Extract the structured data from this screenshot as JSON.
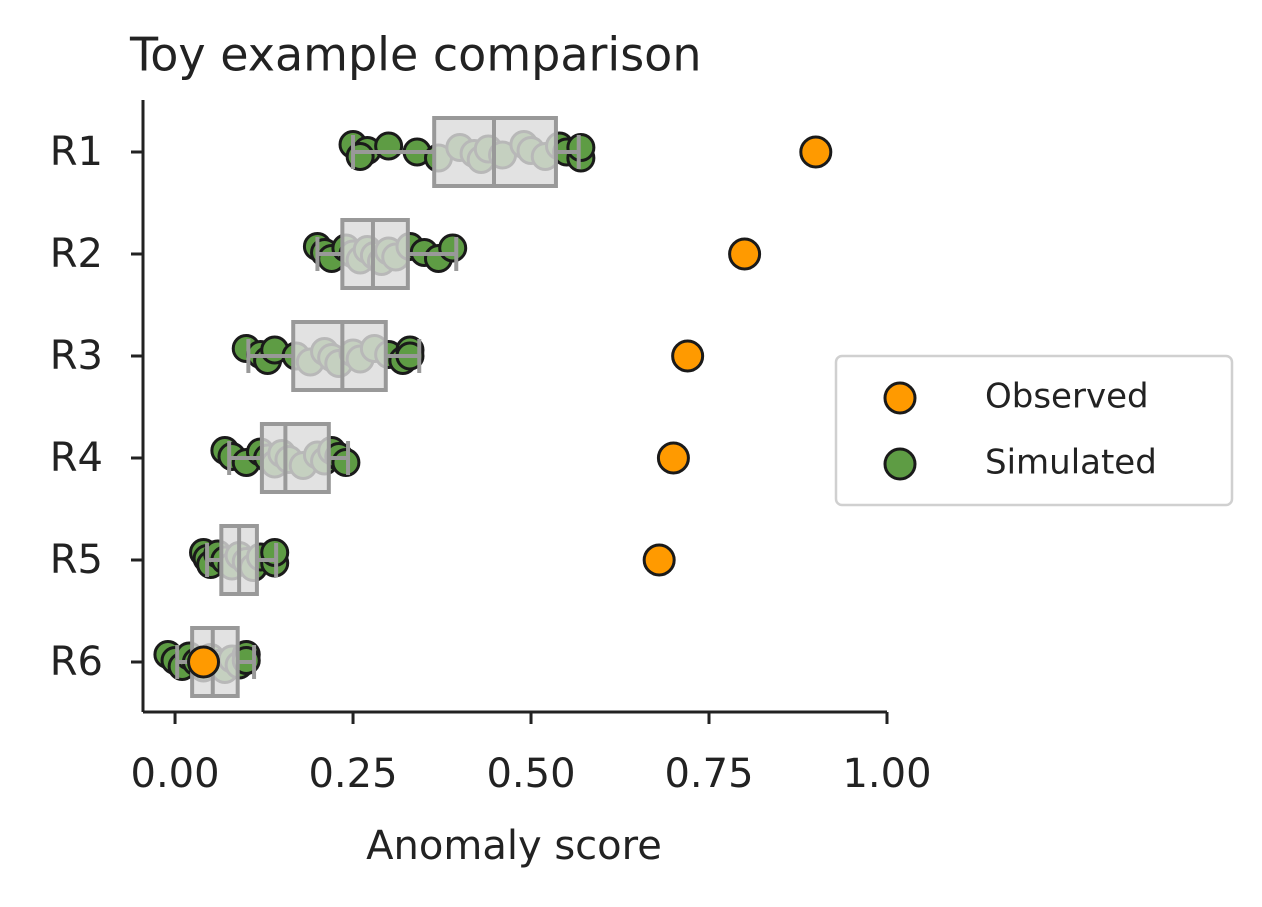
{
  "chart_data": {
    "type": "box",
    "title": "Toy example comparison",
    "x_label": "Anomaly score",
    "categories": [
      "R1",
      "R2",
      "R3",
      "R4",
      "R5",
      "R6"
    ],
    "xlim": [
      -0.045,
      1.0
    ],
    "xticks": [
      {
        "value": 0,
        "label": "0.00"
      },
      {
        "value": 0.25,
        "label": "0.25"
      },
      {
        "value": 0.5,
        "label": "0.50"
      },
      {
        "value": 0.75,
        "label": "0.75"
      },
      {
        "value": 1,
        "label": "1.00"
      }
    ],
    "legend": "right",
    "series": [
      {
        "name": "Observed",
        "color": "#ff9a00",
        "values": [
          0.9,
          0.8,
          0.72,
          0.7,
          0.68,
          0.04
        ]
      },
      {
        "name": "Simulated",
        "color": "#5e9c44",
        "values": [
          [
            0.25,
            0.27,
            0.26,
            0.3,
            0.34,
            0.37,
            0.4,
            0.42,
            0.43,
            0.44,
            0.46,
            0.49,
            0.5,
            0.52,
            0.54,
            0.55,
            0.57,
            0.57
          ],
          [
            0.2,
            0.21,
            0.22,
            0.24,
            0.25,
            0.26,
            0.27,
            0.28,
            0.29,
            0.3,
            0.31,
            0.33,
            0.35,
            0.37,
            0.39
          ],
          [
            0.1,
            0.12,
            0.13,
            0.14,
            0.17,
            0.19,
            0.21,
            0.22,
            0.23,
            0.25,
            0.26,
            0.28,
            0.3,
            0.32,
            0.33,
            0.33
          ],
          [
            0.07,
            0.08,
            0.1,
            0.12,
            0.13,
            0.14,
            0.15,
            0.16,
            0.18,
            0.2,
            0.21,
            0.22,
            0.23,
            0.24
          ],
          [
            0.04,
            0.045,
            0.05,
            0.06,
            0.07,
            0.08,
            0.09,
            0.1,
            0.11,
            0.12,
            0.14,
            0.14
          ],
          [
            -0.01,
            0.0,
            0.01,
            0.02,
            0.03,
            0.04,
            0.05,
            0.06,
            0.07,
            0.08,
            0.09,
            0.1,
            0.1
          ]
        ]
      }
    ],
    "box_color": "#999999",
    "boxes": [
      {
        "whisker_low": 0.25,
        "q1": 0.364,
        "median": 0.448,
        "q3": 0.535,
        "whisker_high": 0.567
      },
      {
        "whisker_low": 0.2,
        "q1": 0.235,
        "median": 0.278,
        "q3": 0.327,
        "whisker_high": 0.395
      },
      {
        "whisker_low": 0.103,
        "q1": 0.166,
        "median": 0.235,
        "q3": 0.296,
        "whisker_high": 0.343
      },
      {
        "whisker_low": 0.076,
        "q1": 0.122,
        "median": 0.155,
        "q3": 0.216,
        "whisker_high": 0.243
      },
      {
        "whisker_low": 0.045,
        "q1": 0.065,
        "median": 0.09,
        "q3": 0.115,
        "whisker_high": 0.142
      },
      {
        "whisker_low": 0.003,
        "q1": 0.024,
        "median": 0.053,
        "q3": 0.088,
        "whisker_high": 0.111
      }
    ]
  }
}
